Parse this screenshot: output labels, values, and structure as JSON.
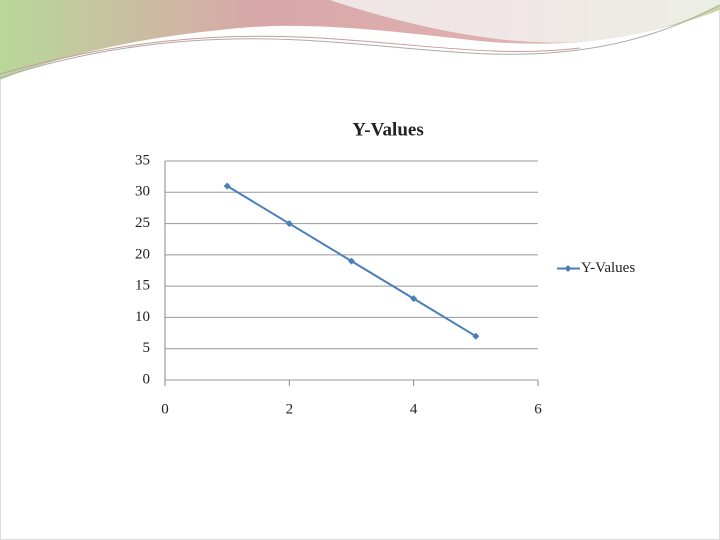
{
  "chart_data": {
    "type": "line",
    "title": "Y-Values",
    "x": [
      1,
      2,
      3,
      4,
      5
    ],
    "series": [
      {
        "name": "Y-Values",
        "color": "#4a7ebb",
        "values": [
          31,
          25,
          19,
          13,
          7
        ]
      }
    ],
    "xlim": [
      0,
      6
    ],
    "xticks": [
      0,
      2,
      4,
      6
    ],
    "ylim": [
      0,
      35
    ],
    "yticks": [
      0,
      5,
      10,
      15,
      20,
      25,
      30,
      35
    ],
    "grid": true,
    "legend": "right"
  }
}
